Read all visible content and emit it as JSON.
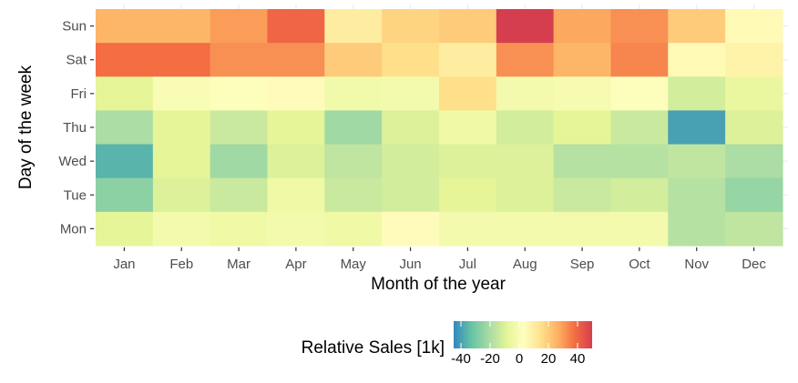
{
  "chart_data": {
    "type": "heatmap",
    "title": "",
    "xlabel": "Month of the year",
    "ylabel": "Day of the week",
    "x_categories": [
      "Jan",
      "Feb",
      "Mar",
      "Apr",
      "May",
      "Jun",
      "Jul",
      "Aug",
      "Sep",
      "Oct",
      "Nov",
      "Dec"
    ],
    "y_categories": [
      "Sun",
      "Sat",
      "Fri",
      "Thu",
      "Wed",
      "Tue",
      "Mon"
    ],
    "values": [
      [
        25,
        25,
        30,
        40,
        10,
        18,
        20,
        50,
        28,
        32,
        20,
        5
      ],
      [
        38,
        38,
        32,
        32,
        20,
        15,
        10,
        32,
        25,
        34,
        5,
        8
      ],
      [
        -8,
        0,
        2,
        4,
        -3,
        -2,
        15,
        -2,
        -1,
        2,
        -12,
        -6
      ],
      [
        -20,
        -8,
        -14,
        -8,
        -22,
        -10,
        -4,
        -12,
        -8,
        -14,
        -40,
        -10
      ],
      [
        -36,
        -8,
        -22,
        -10,
        -16,
        -12,
        -10,
        -10,
        -18,
        -18,
        -16,
        -20
      ],
      [
        -26,
        -10,
        -14,
        -4,
        -14,
        -12,
        -8,
        -10,
        -14,
        -12,
        -18,
        -24
      ],
      [
        -8,
        -2,
        -4,
        -2,
        -4,
        4,
        -2,
        -2,
        -2,
        -2,
        -18,
        -16
      ]
    ],
    "legend": {
      "title": "Relative Sales [1k]",
      "range": [
        -45,
        50
      ],
      "ticks": [
        -40,
        -20,
        0,
        20,
        40
      ],
      "tick_labels": [
        "-40",
        "-20",
        "0",
        "20",
        "40"
      ],
      "position": "bottom"
    },
    "color_scale": [
      {
        "v": -45,
        "c": "#3288bd"
      },
      {
        "v": -33,
        "c": "#66c2a5"
      },
      {
        "v": -20,
        "c": "#abdda4"
      },
      {
        "v": -8,
        "c": "#e6f598"
      },
      {
        "v": 3,
        "c": "#ffffbf"
      },
      {
        "v": 15,
        "c": "#fee08b"
      },
      {
        "v": 27,
        "c": "#fdae61"
      },
      {
        "v": 38,
        "c": "#f46d43"
      },
      {
        "v": 50,
        "c": "#d53e4f"
      }
    ]
  }
}
